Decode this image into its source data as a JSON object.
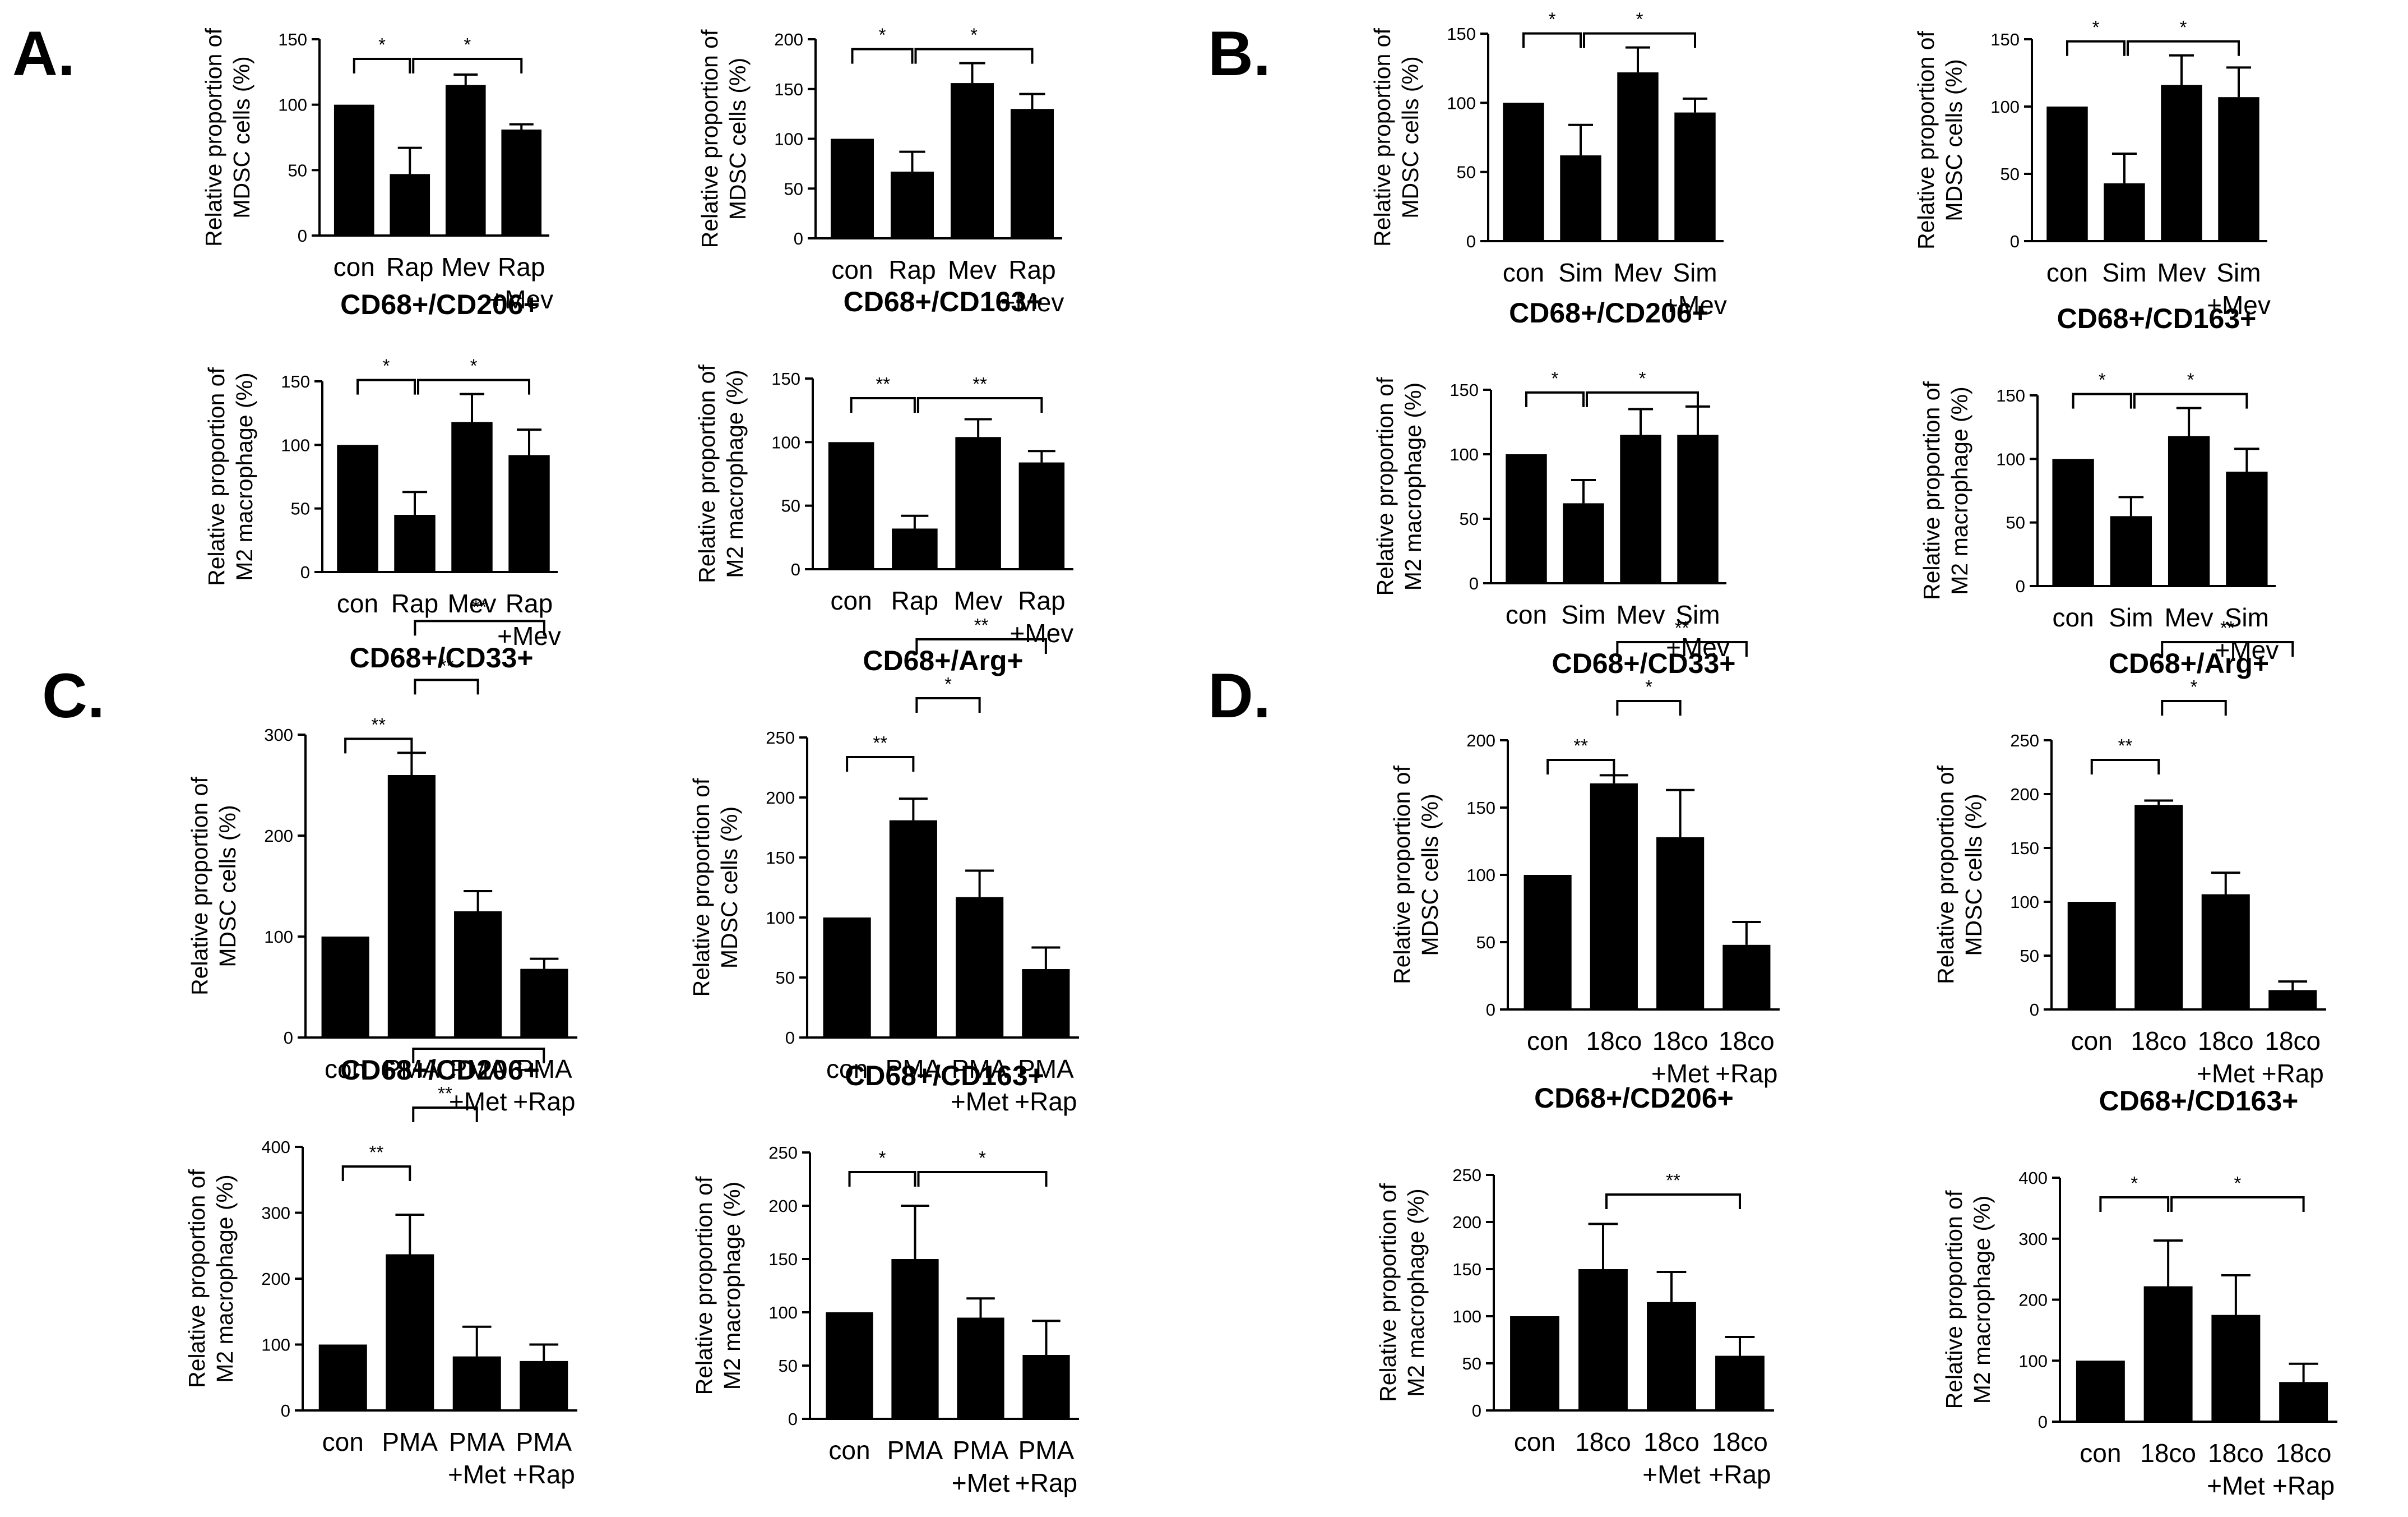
{
  "panel_labels": [
    "A.",
    "B.",
    "C.",
    "D."
  ],
  "chart_data": [
    {
      "type": "bar",
      "panel": "A.",
      "title": "CD68+/CD33+",
      "ylabel_lines": [
        "Relative proportion of",
        "MDSC cells (%)"
      ],
      "categories": [
        [
          "con"
        ],
        [
          "Rap"
        ],
        [
          "Mev"
        ],
        [
          "Rap",
          "+Mev"
        ]
      ],
      "values": [
        100,
        47,
        115,
        81
      ],
      "errors": [
        0,
        20,
        8,
        4
      ],
      "yticks": [
        0,
        50,
        100,
        150
      ],
      "ylim": [
        0,
        150
      ],
      "significance": [
        {
          "from": 0,
          "to": 1,
          "label": "*"
        },
        {
          "from": 1,
          "to": 3,
          "label": "*"
        }
      ]
    },
    {
      "type": "bar",
      "panel": "A.",
      "title": "CD68+/Arg+",
      "ylabel_lines": [
        "Relative proportion of",
        "MDSC cells (%)"
      ],
      "categories": [
        [
          "con"
        ],
        [
          "Rap"
        ],
        [
          "Mev"
        ],
        [
          "Rap",
          "+Mev"
        ]
      ],
      "values": [
        100,
        67,
        156,
        130
      ],
      "errors": [
        0,
        20,
        20,
        15
      ],
      "yticks": [
        0,
        50,
        100,
        150,
        200
      ],
      "ylim": [
        0,
        200
      ],
      "significance": [
        {
          "from": 0,
          "to": 1,
          "label": "*"
        },
        {
          "from": 1,
          "to": 3,
          "label": "*"
        }
      ]
    },
    {
      "type": "bar",
      "panel": "A.",
      "title": "CD68+/CD206+",
      "ylabel_lines": [
        "Relative proportion of",
        "M2 macrophage (%)"
      ],
      "categories": [
        [
          "con"
        ],
        [
          "Rap"
        ],
        [
          "Mev"
        ],
        [
          "Rap",
          "+Mev"
        ]
      ],
      "values": [
        100,
        45,
        118,
        92
      ],
      "errors": [
        0,
        18,
        22,
        20
      ],
      "yticks": [
        0,
        50,
        100,
        150
      ],
      "ylim": [
        0,
        150
      ],
      "significance": [
        {
          "from": 0,
          "to": 1,
          "label": "*"
        },
        {
          "from": 1,
          "to": 3,
          "label": "*"
        }
      ]
    },
    {
      "type": "bar",
      "panel": "A.",
      "title": "CD68+/CD163+",
      "ylabel_lines": [
        "Relative proportion of",
        "M2 macrophage (%)"
      ],
      "categories": [
        [
          "con"
        ],
        [
          "Rap"
        ],
        [
          "Mev"
        ],
        [
          "Rap",
          "+Mev"
        ]
      ],
      "values": [
        100,
        32,
        104,
        84
      ],
      "errors": [
        0,
        10,
        14,
        9
      ],
      "yticks": [
        0,
        50,
        100,
        150
      ],
      "ylim": [
        0,
        150
      ],
      "significance": [
        {
          "from": 0,
          "to": 1,
          "label": "**"
        },
        {
          "from": 1,
          "to": 3,
          "label": "**"
        }
      ]
    },
    {
      "type": "bar",
      "panel": "B.",
      "title": "CD68+/CD33+",
      "ylabel_lines": [
        "Relative proportion of",
        "MDSC cells (%)"
      ],
      "categories": [
        [
          "con"
        ],
        [
          "Sim"
        ],
        [
          "Mev"
        ],
        [
          "Sim",
          "+Mev"
        ]
      ],
      "values": [
        100,
        62,
        122,
        93
      ],
      "errors": [
        0,
        22,
        18,
        10
      ],
      "yticks": [
        0,
        50,
        100,
        150
      ],
      "ylim": [
        0,
        150
      ],
      "significance": [
        {
          "from": 0,
          "to": 1,
          "label": "*"
        },
        {
          "from": 1,
          "to": 3,
          "label": "*"
        }
      ]
    },
    {
      "type": "bar",
      "panel": "B.",
      "title": "CD68+/Arg+",
      "ylabel_lines": [
        "Relative proportion of",
        "MDSC cells (%)"
      ],
      "categories": [
        [
          "con"
        ],
        [
          "Sim"
        ],
        [
          "Mev"
        ],
        [
          "Sim",
          "+Mev"
        ]
      ],
      "values": [
        100,
        43,
        116,
        107
      ],
      "errors": [
        0,
        22,
        22,
        22
      ],
      "yticks": [
        0,
        50,
        100,
        150
      ],
      "ylim": [
        0,
        150
      ],
      "significance": [
        {
          "from": 0,
          "to": 1,
          "label": "*"
        },
        {
          "from": 1,
          "to": 3,
          "label": "*"
        }
      ]
    },
    {
      "type": "bar",
      "panel": "B.",
      "title": "CD68+/CD206+",
      "ylabel_lines": [
        "Relative proportion of",
        "M2 macrophage (%)"
      ],
      "categories": [
        [
          "con"
        ],
        [
          "Sim"
        ],
        [
          "Mev"
        ],
        [
          "Sim",
          "+Mev"
        ]
      ],
      "values": [
        100,
        62,
        115,
        115
      ],
      "errors": [
        0,
        18,
        20,
        22
      ],
      "yticks": [
        0,
        50,
        100,
        150
      ],
      "ylim": [
        0,
        150
      ],
      "significance": [
        {
          "from": 0,
          "to": 1,
          "label": "*"
        },
        {
          "from": 1,
          "to": 3,
          "label": "*"
        }
      ]
    },
    {
      "type": "bar",
      "panel": "B.",
      "title": "CD68+/CD163+",
      "ylabel_lines": [
        "Relative proportion of",
        "M2 macrophage (%)"
      ],
      "categories": [
        [
          "con"
        ],
        [
          "Sim"
        ],
        [
          "Mev"
        ],
        [
          "Sim",
          "+Mev"
        ]
      ],
      "values": [
        100,
        55,
        118,
        90
      ],
      "errors": [
        0,
        15,
        22,
        18
      ],
      "yticks": [
        0,
        50,
        100,
        150
      ],
      "ylim": [
        0,
        150
      ],
      "significance": [
        {
          "from": 0,
          "to": 1,
          "label": "*"
        },
        {
          "from": 1,
          "to": 3,
          "label": "*"
        }
      ]
    },
    {
      "type": "bar",
      "panel": "C.",
      "title": "CD68+/CD33+",
      "ylabel_lines": [
        "Relative proportion of",
        "MDSC cells (%)"
      ],
      "categories": [
        [
          "con"
        ],
        [
          "PMA"
        ],
        [
          "PMA",
          "+Met"
        ],
        [
          "PMA",
          "+Rap"
        ]
      ],
      "values": [
        100,
        260,
        125,
        68
      ],
      "errors": [
        0,
        22,
        20,
        10
      ],
      "yticks": [
        0,
        100,
        200,
        300
      ],
      "ylim": [
        0,
        300
      ],
      "significance": [
        {
          "from": 0,
          "to": 1,
          "label": "**"
        },
        {
          "from": 1,
          "to": 2,
          "label": "**"
        },
        {
          "from": 1,
          "to": 3,
          "label": "**"
        }
      ]
    },
    {
      "type": "bar",
      "panel": "C.",
      "title": "CD68+/Arg+",
      "ylabel_lines": [
        "Relative proportion of",
        "MDSC cells (%)"
      ],
      "categories": [
        [
          "con"
        ],
        [
          "PMA"
        ],
        [
          "PMA",
          "+Met"
        ],
        [
          "PMA",
          "+Rap"
        ]
      ],
      "values": [
        100,
        181,
        117,
        57
      ],
      "errors": [
        0,
        18,
        22,
        18
      ],
      "yticks": [
        0,
        50,
        100,
        150,
        200,
        250
      ],
      "ylim": [
        0,
        250
      ],
      "significance": [
        {
          "from": 0,
          "to": 1,
          "label": "**"
        },
        {
          "from": 1,
          "to": 2,
          "label": "*"
        },
        {
          "from": 1,
          "to": 3,
          "label": "**"
        }
      ]
    },
    {
      "type": "bar",
      "panel": "C.",
      "title": "CD68+/CD206+",
      "ylabel_lines": [
        "Relative proportion of",
        "M2 macrophage (%)"
      ],
      "categories": [
        [
          "con"
        ],
        [
          "PMA"
        ],
        [
          "PMA",
          "+Met"
        ],
        [
          "PMA",
          "+Rap"
        ]
      ],
      "values": [
        100,
        237,
        82,
        75
      ],
      "errors": [
        0,
        60,
        45,
        25
      ],
      "yticks": [
        0,
        100,
        200,
        300,
        400
      ],
      "ylim": [
        0,
        400
      ],
      "significance": [
        {
          "from": 0,
          "to": 1,
          "label": "**"
        },
        {
          "from": 1,
          "to": 2,
          "label": "**"
        },
        {
          "from": 1,
          "to": 3,
          "label": "**"
        }
      ]
    },
    {
      "type": "bar",
      "panel": "C.",
      "title": "CD68+/CD163+",
      "ylabel_lines": [
        "Relative proportion of",
        "M2 macrophage (%)"
      ],
      "categories": [
        [
          "con"
        ],
        [
          "PMA"
        ],
        [
          "PMA",
          "+Met"
        ],
        [
          "PMA",
          "+Rap"
        ]
      ],
      "values": [
        100,
        150,
        95,
        60
      ],
      "errors": [
        0,
        50,
        18,
        32
      ],
      "yticks": [
        0,
        50,
        100,
        150,
        200,
        250
      ],
      "ylim": [
        0,
        250
      ],
      "significance": [
        {
          "from": 0,
          "to": 1,
          "label": "*"
        },
        {
          "from": 1,
          "to": 3,
          "label": "*"
        }
      ]
    },
    {
      "type": "bar",
      "panel": "D.",
      "title": "CD68+/CD33+",
      "ylabel_lines": [
        "Relative proportion of",
        "MDSC cells (%)"
      ],
      "categories": [
        [
          "con"
        ],
        [
          "18co"
        ],
        [
          "18co",
          "+Met"
        ],
        [
          "18co",
          "+Rap"
        ]
      ],
      "values": [
        100,
        168,
        128,
        48
      ],
      "errors": [
        0,
        6,
        35,
        17
      ],
      "yticks": [
        0,
        50,
        100,
        150,
        200
      ],
      "ylim": [
        0,
        200
      ],
      "significance": [
        {
          "from": 0,
          "to": 1,
          "label": "**"
        },
        {
          "from": 1,
          "to": 2,
          "label": "*"
        },
        {
          "from": 1,
          "to": 3,
          "label": "**"
        }
      ]
    },
    {
      "type": "bar",
      "panel": "D.",
      "title": "CD68+/Arg+",
      "ylabel_lines": [
        "Relative proportion of",
        "MDSC cells (%)"
      ],
      "categories": [
        [
          "con"
        ],
        [
          "18co"
        ],
        [
          "18co",
          "+Met"
        ],
        [
          "18co",
          "+Rap"
        ]
      ],
      "values": [
        100,
        190,
        107,
        18
      ],
      "errors": [
        0,
        4,
        20,
        8
      ],
      "yticks": [
        0,
        50,
        100,
        150,
        200,
        250
      ],
      "ylim": [
        0,
        250
      ],
      "significance": [
        {
          "from": 0,
          "to": 1,
          "label": "**"
        },
        {
          "from": 1,
          "to": 2,
          "label": "*"
        },
        {
          "from": 1,
          "to": 3,
          "label": "**"
        }
      ]
    },
    {
      "type": "bar",
      "panel": "D.",
      "title": "CD68+/CD206+",
      "ylabel_lines": [
        "Relative proportion of",
        "M2 macrophage (%)"
      ],
      "categories": [
        [
          "con"
        ],
        [
          "18co"
        ],
        [
          "18co",
          "+Met"
        ],
        [
          "18co",
          "+Rap"
        ]
      ],
      "values": [
        100,
        150,
        115,
        58
      ],
      "errors": [
        0,
        48,
        32,
        20
      ],
      "yticks": [
        0,
        50,
        100,
        150,
        200,
        250
      ],
      "ylim": [
        0,
        250
      ],
      "significance": [
        {
          "from": 1,
          "to": 3,
          "label": "**"
        }
      ]
    },
    {
      "type": "bar",
      "panel": "D.",
      "title": "CD68+/CD163+",
      "ylabel_lines": [
        "Relative proportion of",
        "M2 macrophage (%)"
      ],
      "categories": [
        [
          "con"
        ],
        [
          "18co"
        ],
        [
          "18co",
          "+Met"
        ],
        [
          "18co",
          "+Rap"
        ]
      ],
      "values": [
        100,
        222,
        175,
        65
      ],
      "errors": [
        0,
        75,
        65,
        30
      ],
      "yticks": [
        0,
        100,
        200,
        300,
        400
      ],
      "ylim": [
        0,
        400
      ],
      "significance": [
        {
          "from": 0,
          "to": 1,
          "label": "*"
        },
        {
          "from": 1,
          "to": 3,
          "label": "*"
        }
      ]
    }
  ]
}
